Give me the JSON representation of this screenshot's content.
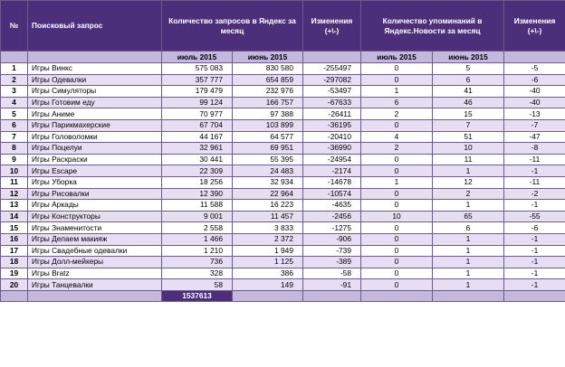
{
  "headers": {
    "num": "№",
    "query": "Поисковый запрос",
    "yandex_requests": "Количество запросов в Яндекс за месяц",
    "changes_1": "Изменения (+\\-)",
    "news_mentions": "Количество упоминаний в Яндекс.Новости за месяц",
    "changes_2": "Изменения (+\\-)",
    "jul": "июль 2015",
    "jun": "июнь 2015"
  },
  "rows": [
    {
      "n": "1",
      "q": "Игры Винкс",
      "jul": "575 083",
      "jun": "830 580",
      "chg": "-255497",
      "njul": "0",
      "njun": "5",
      "nchg": "-5"
    },
    {
      "n": "2",
      "q": "Игры Одевалки",
      "jul": "357 777",
      "jun": "654 859",
      "chg": "-297082",
      "njul": "0",
      "njun": "6",
      "nchg": "-6"
    },
    {
      "n": "3",
      "q": "Игры Симуляторы",
      "jul": "179 479",
      "jun": "232 976",
      "chg": "-53497",
      "njul": "1",
      "njun": "41",
      "nchg": "-40"
    },
    {
      "n": "4",
      "q": "Игры Готовим еду",
      "jul": "99 124",
      "jun": "166 757",
      "chg": "-67633",
      "njul": "6",
      "njun": "46",
      "nchg": "-40"
    },
    {
      "n": "5",
      "q": "Игры Аниме",
      "jul": "70 977",
      "jun": "97 388",
      "chg": "-26411",
      "njul": "2",
      "njun": "15",
      "nchg": "-13"
    },
    {
      "n": "6",
      "q": "Игры Парикмахерские",
      "jul": "67 704",
      "jun": "103 899",
      "chg": "-36195",
      "njul": "0",
      "njun": "7",
      "nchg": "-7"
    },
    {
      "n": "7",
      "q": "Игры Головоломки",
      "jul": "44 167",
      "jun": "64 577",
      "chg": "-20410",
      "njul": "4",
      "njun": "51",
      "nchg": "-47"
    },
    {
      "n": "8",
      "q": "Игры Поцелуи",
      "jul": "32 961",
      "jun": "69 951",
      "chg": "-36990",
      "njul": "2",
      "njun": "10",
      "nchg": "-8"
    },
    {
      "n": "9",
      "q": "Игры Раскраски",
      "jul": "30 441",
      "jun": "55 395",
      "chg": "-24954",
      "njul": "0",
      "njun": "11",
      "nchg": "-11"
    },
    {
      "n": "10",
      "q": "Игры Escape",
      "jul": "22 309",
      "jun": "24 483",
      "chg": "-2174",
      "njul": "0",
      "njun": "1",
      "nchg": "-1"
    },
    {
      "n": "11",
      "q": "Игры Уборка",
      "jul": "18 256",
      "jun": "32 934",
      "chg": "-14678",
      "njul": "1",
      "njun": "12",
      "nchg": "-11"
    },
    {
      "n": "12",
      "q": "Игры Рисовалки",
      "jul": "12 390",
      "jun": "22 964",
      "chg": "-10574",
      "njul": "0",
      "njun": "2",
      "nchg": "-2"
    },
    {
      "n": "13",
      "q": "Игры Аркады",
      "jul": "11 588",
      "jun": "16 223",
      "chg": "-4635",
      "njul": "0",
      "njun": "1",
      "nchg": "-1"
    },
    {
      "n": "14",
      "q": "Игры Конструкторы",
      "jul": "9 001",
      "jun": "11 457",
      "chg": "-2456",
      "njul": "10",
      "njun": "65",
      "nchg": "-55"
    },
    {
      "n": "15",
      "q": "Игры Знаменитости",
      "jul": "2 558",
      "jun": "3 833",
      "chg": "-1275",
      "njul": "0",
      "njun": "6",
      "nchg": "-6"
    },
    {
      "n": "16",
      "q": "Игры Делаем макияж",
      "jul": "1 466",
      "jun": "2 372",
      "chg": "-906",
      "njul": "0",
      "njun": "1",
      "nchg": "-1"
    },
    {
      "n": "17",
      "q": "Игры Свадебные одевалки",
      "jul": "1 210",
      "jun": "1 949",
      "chg": "-739",
      "njul": "0",
      "njun": "1",
      "nchg": "-1"
    },
    {
      "n": "18",
      "q": "Игры Долл-мейкеры",
      "jul": "736",
      "jun": "1 125",
      "chg": "-389",
      "njul": "0",
      "njun": "1",
      "nchg": "-1"
    },
    {
      "n": "19",
      "q": "Игры Bratz",
      "jul": "328",
      "jun": "386",
      "chg": "-58",
      "njul": "0",
      "njun": "1",
      "nchg": "-1"
    },
    {
      "n": "20",
      "q": "Игры Танцевалки",
      "jul": "58",
      "jun": "149",
      "chg": "-91",
      "njul": "0",
      "njun": "1",
      "nchg": "-1"
    }
  ],
  "total": "1537613",
  "colors": {
    "header_bg": "#4b2f7a",
    "subheader_bg": "#c6b8dd",
    "row_alt_bg": "#e6def2",
    "border": "#6f5a8f"
  }
}
